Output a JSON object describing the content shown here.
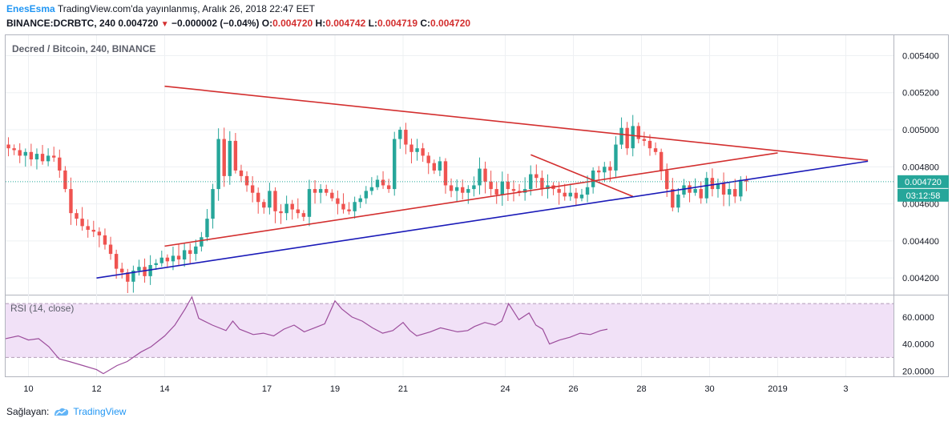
{
  "header": {
    "author": "EnesEsma",
    "published": "TradingView.com'da yayınlanmış, Aralık 26, 2018 22:47 EET",
    "symbol": "BINANCE:DCRBTC, 240",
    "last": "0.004720",
    "change": "−0.000002 (−0.04%)",
    "o_label": "O:",
    "o_value": "0.004720",
    "h_label": "H:",
    "h_value": "0.004742",
    "l_label": "L:",
    "l_value": "0.004719",
    "c_label": "C:",
    "c_value": "0.004720"
  },
  "footer": {
    "label": "Sağlayan:",
    "brand": "TradingView"
  },
  "colors": {
    "up": "#26a69a",
    "down": "#ef5350",
    "trend_red": "#d32f2f",
    "trend_blue": "#1a1ab8",
    "rsi_line": "#9c4d9c",
    "rsi_band": "#f1e1f7",
    "price_badge": "#26a69a"
  },
  "chart_data": {
    "type": "candlestick",
    "title": "Decred / Bitcoin, 240, BINANCE",
    "ylim": [
      0.00411,
      0.00551
    ],
    "y_ticks": [
      "0.005400",
      "0.005200",
      "0.005000",
      "0.004800",
      "0.004600",
      "0.004400",
      "0.004200"
    ],
    "y_tick_values": [
      0.0054,
      0.0052,
      0.005,
      0.0048,
      0.0046,
      0.0044,
      0.0042
    ],
    "x_range_days": [
      9.33,
      35.4
    ],
    "x_ticks": [
      {
        "day": 10,
        "label": "10"
      },
      {
        "day": 12,
        "label": "12"
      },
      {
        "day": 14,
        "label": "14"
      },
      {
        "day": 17,
        "label": "17"
      },
      {
        "day": 19,
        "label": "19"
      },
      {
        "day": 21,
        "label": "21"
      },
      {
        "day": 24,
        "label": "24"
      },
      {
        "day": 26,
        "label": "26"
      },
      {
        "day": 28,
        "label": "28"
      },
      {
        "day": 30,
        "label": "30"
      },
      {
        "day": 32,
        "label": "2019"
      },
      {
        "day": 34,
        "label": "3"
      }
    ],
    "closes": [
      0.0049,
      0.00489,
      0.00486,
      0.00488,
      0.00484,
      0.00487,
      0.00483,
      0.00486,
      0.00485,
      0.00478,
      0.00468,
      0.00455,
      0.00452,
      0.00448,
      0.00446,
      0.00445,
      0.00443,
      0.00438,
      0.00433,
      0.00425,
      0.00423,
      0.00418,
      0.00424,
      0.00426,
      0.00421,
      0.00427,
      0.00428,
      0.00431,
      0.00429,
      0.00432,
      0.0043,
      0.00435,
      0.00433,
      0.00437,
      0.00442,
      0.00452,
      0.00468,
      0.00495,
      0.00475,
      0.00494,
      0.00478,
      0.00475,
      0.0047,
      0.00466,
      0.00461,
      0.00458,
      0.00467,
      0.00456,
      0.00455,
      0.0046,
      0.00457,
      0.00455,
      0.00453,
      0.00468,
      0.00466,
      0.00468,
      0.00466,
      0.00463,
      0.0046,
      0.00457,
      0.00456,
      0.00461,
      0.00463,
      0.00467,
      0.00469,
      0.00473,
      0.0047,
      0.00468,
      0.00495,
      0.005,
      0.00492,
      0.00488,
      0.0049,
      0.00486,
      0.00482,
      0.00478,
      0.00483,
      0.0047,
      0.00467,
      0.00469,
      0.00466,
      0.00468,
      0.0047,
      0.00479,
      0.00472,
      0.00468,
      0.00465,
      0.00472,
      0.00468,
      0.00467,
      0.00466,
      0.00468,
      0.00476,
      0.00474,
      0.00468,
      0.0047,
      0.00468,
      0.00466,
      0.00464,
      0.00466,
      0.00463,
      0.00465,
      0.00469,
      0.00478,
      0.00477,
      0.0048,
      0.00478,
      0.00492,
      0.00501,
      0.0049,
      0.00502,
      0.00495,
      0.00494,
      0.0049,
      0.00488,
      0.00478,
      0.00468,
      0.00458,
      0.00465,
      0.0047,
      0.00466,
      0.00468,
      0.00463,
      0.00474,
      0.00468,
      0.00471,
      0.00465,
      0.00468,
      0.00464,
      0.00473,
      0.00472
    ],
    "shapes": [
      {
        "name": "upper-red-trendline",
        "color": "red",
        "points": [
          [
            14.0,
            0.005235
          ],
          [
            34.65,
            0.004835
          ]
        ]
      },
      {
        "name": "lower-red-trendline",
        "color": "red",
        "points": [
          [
            14.0,
            0.004372
          ],
          [
            32.0,
            0.004875
          ]
        ]
      },
      {
        "name": "short-red-trendline",
        "color": "red",
        "points": [
          [
            24.75,
            0.004865
          ],
          [
            27.75,
            0.00464
          ]
        ]
      },
      {
        "name": "blue-support-trendline",
        "color": "blue",
        "points": [
          [
            12.0,
            0.0042
          ],
          [
            34.65,
            0.00483
          ]
        ]
      }
    ],
    "last_price": "0.004720",
    "countdown": "03:12:58",
    "rsi": {
      "label": "RSI (14, close)",
      "ylim": [
        16,
        76
      ],
      "ticks": [
        "60.0000",
        "40.0000",
        "20.0000"
      ],
      "tick_values": [
        60,
        40,
        20
      ],
      "band": [
        30,
        70
      ],
      "points": [
        [
          9.33,
          44
        ],
        [
          9.7,
          46
        ],
        [
          10.0,
          43
        ],
        [
          10.3,
          44
        ],
        [
          10.6,
          38
        ],
        [
          10.9,
          29
        ],
        [
          11.2,
          27
        ],
        [
          11.6,
          24
        ],
        [
          12.0,
          21
        ],
        [
          12.2,
          18
        ],
        [
          12.6,
          24
        ],
        [
          12.9,
          27
        ],
        [
          13.3,
          34
        ],
        [
          13.6,
          38
        ],
        [
          14.0,
          46
        ],
        [
          14.3,
          54
        ],
        [
          14.6,
          66
        ],
        [
          14.8,
          75
        ],
        [
          15.0,
          59
        ],
        [
          15.4,
          54
        ],
        [
          15.8,
          50
        ],
        [
          16.0,
          57
        ],
        [
          16.2,
          51
        ],
        [
          16.6,
          47
        ],
        [
          16.9,
          48
        ],
        [
          17.2,
          46
        ],
        [
          17.5,
          51
        ],
        [
          17.8,
          54
        ],
        [
          18.1,
          49
        ],
        [
          18.4,
          52
        ],
        [
          18.7,
          55
        ],
        [
          19.0,
          72
        ],
        [
          19.2,
          66
        ],
        [
          19.5,
          60
        ],
        [
          19.8,
          57
        ],
        [
          20.1,
          52
        ],
        [
          20.4,
          48
        ],
        [
          20.7,
          50
        ],
        [
          21.0,
          56
        ],
        [
          21.2,
          50
        ],
        [
          21.4,
          46
        ],
        [
          21.8,
          49
        ],
        [
          22.1,
          52
        ],
        [
          22.6,
          49
        ],
        [
          22.9,
          50
        ],
        [
          23.1,
          53
        ],
        [
          23.4,
          56
        ],
        [
          23.7,
          54
        ],
        [
          23.9,
          57
        ],
        [
          24.1,
          70
        ],
        [
          24.4,
          58
        ],
        [
          24.7,
          63
        ],
        [
          24.9,
          54
        ],
        [
          25.1,
          51
        ],
        [
          25.3,
          40
        ],
        [
          25.6,
          43
        ],
        [
          25.9,
          45
        ],
        [
          26.2,
          48
        ],
        [
          26.5,
          47
        ],
        [
          26.8,
          50
        ],
        [
          27.0,
          51
        ]
      ]
    }
  }
}
